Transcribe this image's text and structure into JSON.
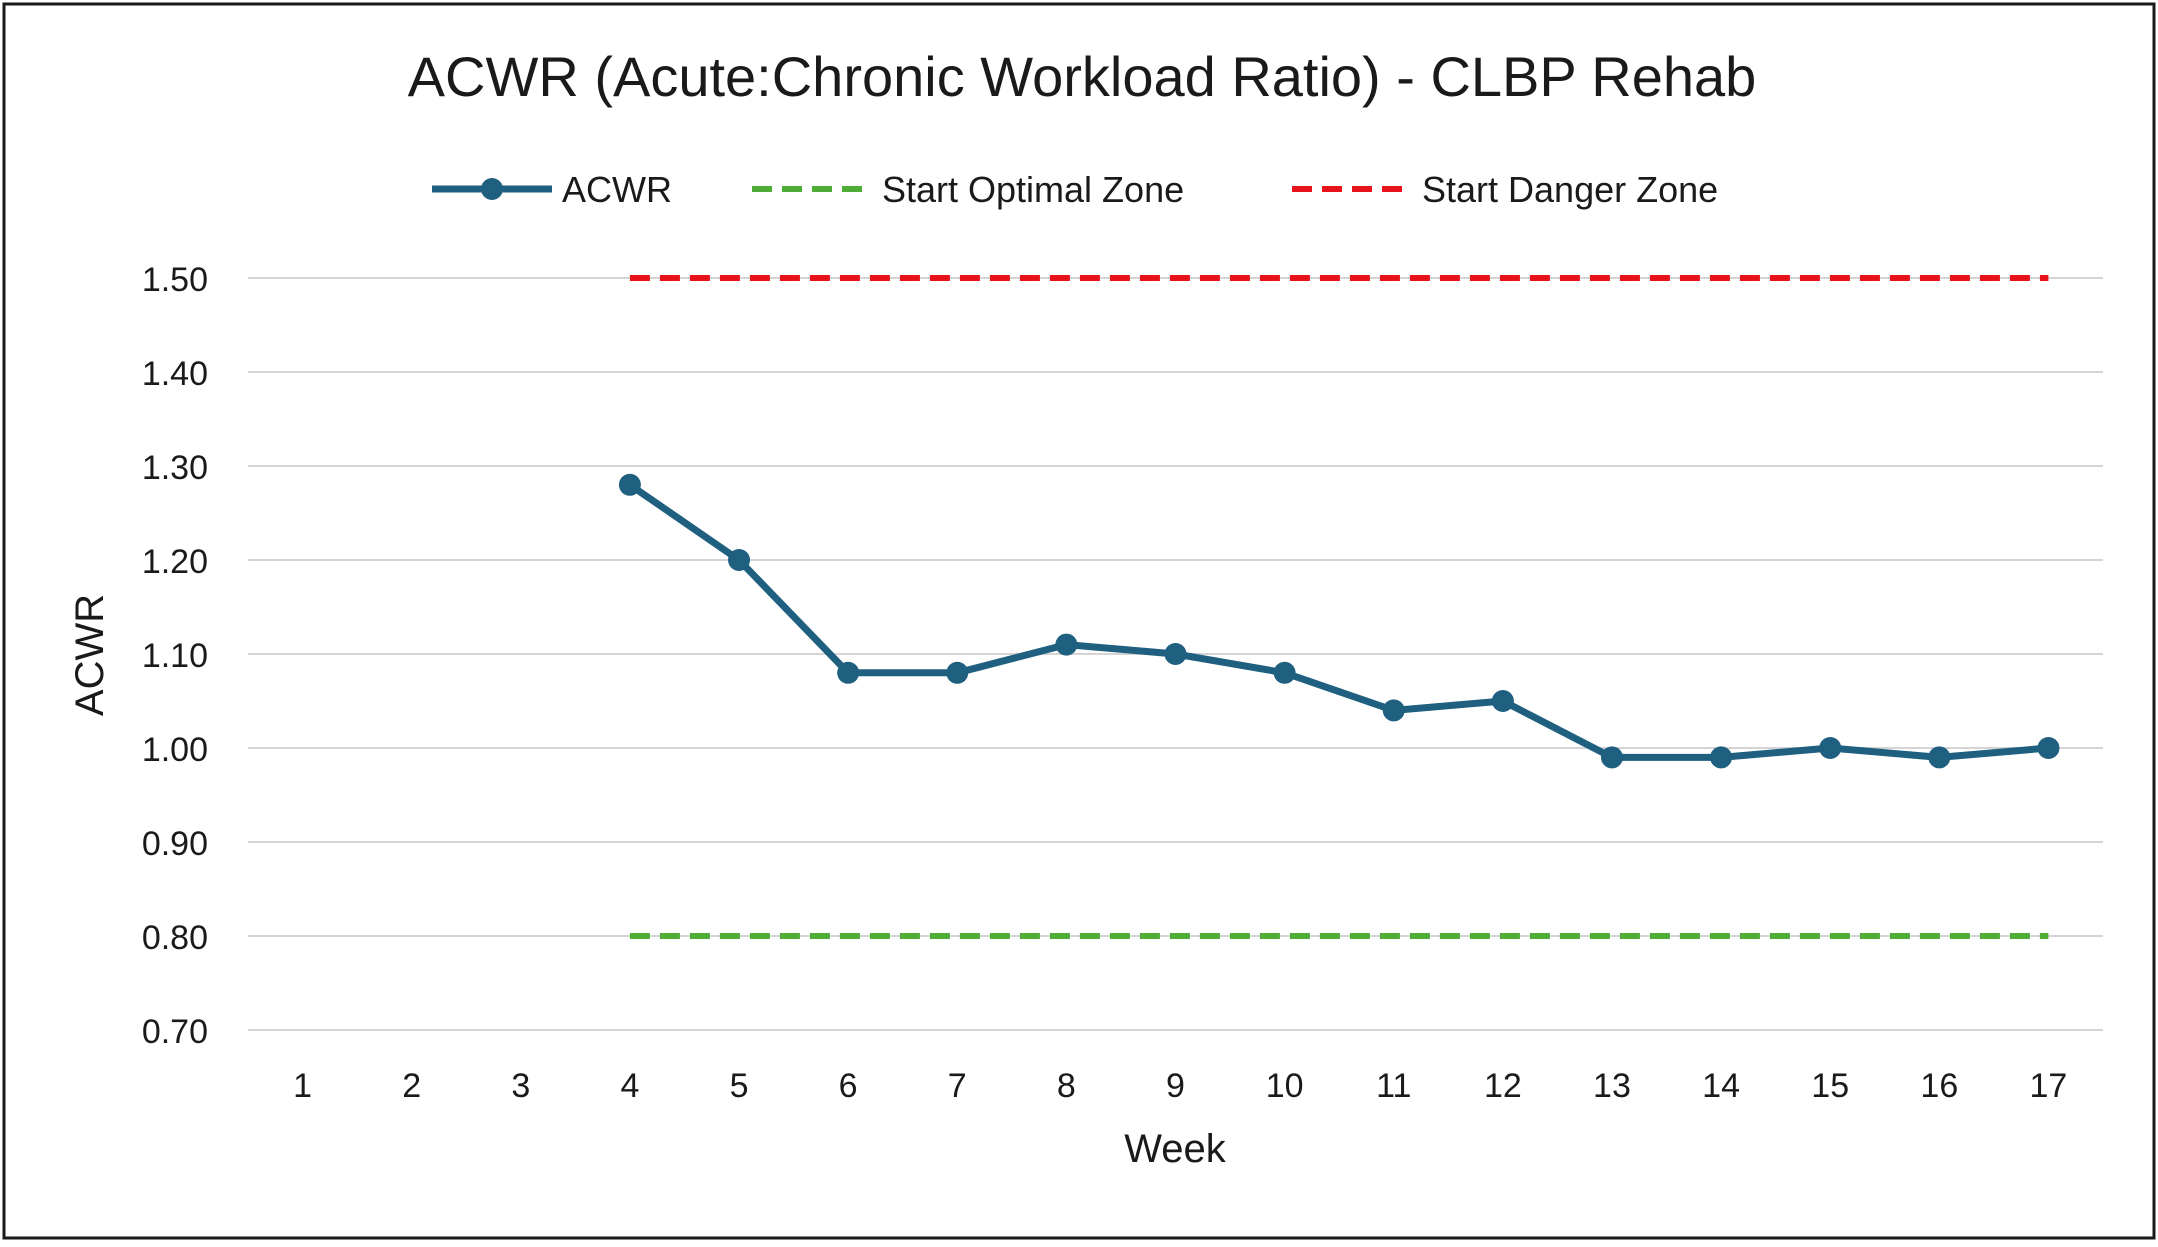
{
  "chart_data": {
    "type": "line",
    "title": "ACWR (Acute:Chronic Workload Ratio) - CLBP Rehab",
    "xlabel": "Week",
    "ylabel": "ACWR",
    "categories": [
      "1",
      "2",
      "3",
      "4",
      "5",
      "6",
      "7",
      "8",
      "9",
      "10",
      "11",
      "12",
      "13",
      "14",
      "15",
      "16",
      "17"
    ],
    "ylim": [
      0.7,
      1.5
    ],
    "yticks": [
      "0.70",
      "0.80",
      "0.90",
      "1.00",
      "1.10",
      "1.20",
      "1.30",
      "1.40",
      "1.50"
    ],
    "grid": true,
    "legend_position": "top",
    "series": [
      {
        "name": "ACWR",
        "style": "solid-markers",
        "color": "#1f5f80",
        "values": [
          null,
          null,
          null,
          1.28,
          1.2,
          1.08,
          1.08,
          1.11,
          1.1,
          1.08,
          1.04,
          1.05,
          0.99,
          0.99,
          1.0,
          0.99,
          1.0
        ]
      },
      {
        "name": "Start Optimal Zone",
        "style": "dashed",
        "color": "#4ead36",
        "values": [
          null,
          null,
          null,
          0.8,
          0.8,
          0.8,
          0.8,
          0.8,
          0.8,
          0.8,
          0.8,
          0.8,
          0.8,
          0.8,
          0.8,
          0.8,
          0.8
        ]
      },
      {
        "name": "Start Danger Zone",
        "style": "dashed",
        "color": "#e8131a",
        "values": [
          null,
          null,
          null,
          1.5,
          1.5,
          1.5,
          1.5,
          1.5,
          1.5,
          1.5,
          1.5,
          1.5,
          1.5,
          1.5,
          1.5,
          1.5,
          1.5
        ]
      }
    ]
  }
}
